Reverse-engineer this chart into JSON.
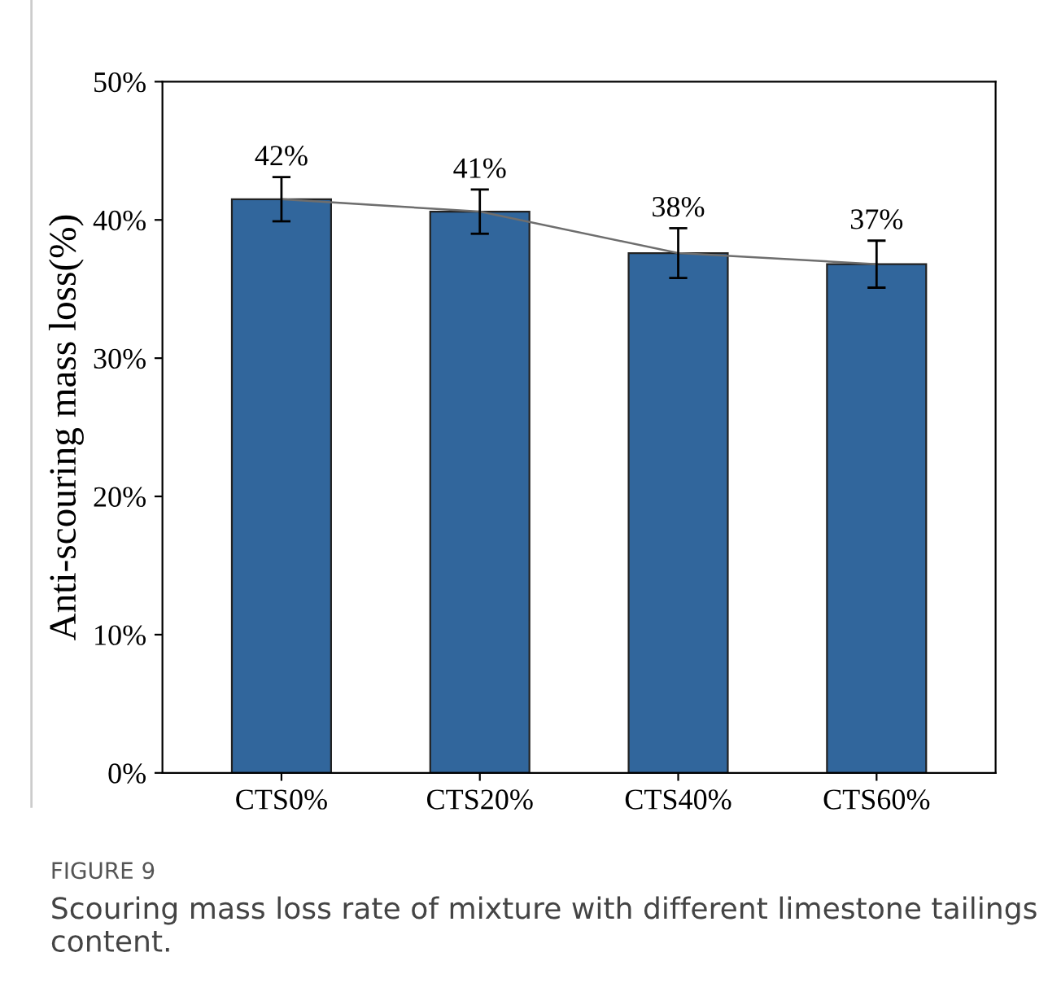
{
  "chart_data": {
    "type": "bar",
    "ylabel": "Anti-scouring mass loss(%)",
    "categories": [
      "CTS0%",
      "CTS20%",
      "CTS40%",
      "CTS60%"
    ],
    "series": [
      {
        "color": "#31669c",
        "values": [
          41.5,
          40.6,
          37.6,
          36.8
        ],
        "errors": [
          1.6,
          1.6,
          1.8,
          1.7
        ],
        "value_labels": [
          "42%",
          "41%",
          "38%",
          "37%"
        ]
      },
      {
        "type": "line",
        "color": "#6e6e6e",
        "values": [
          41.5,
          40.6,
          37.6,
          36.8
        ]
      }
    ],
    "ylim": [
      0,
      50
    ],
    "yticks": [
      {
        "value": 0,
        "label": "0%"
      },
      {
        "value": 10,
        "label": "10%"
      },
      {
        "value": 20,
        "label": "20%"
      },
      {
        "value": 30,
        "label": "30%"
      },
      {
        "value": 40,
        "label": "40%"
      },
      {
        "value": 50,
        "label": "50%"
      }
    ],
    "grid": false,
    "legend": false,
    "marker": "none",
    "annotations": [
      "FIGURE 9",
      "Scouring mass loss rate of mixture with different limestone tailings content."
    ]
  }
}
